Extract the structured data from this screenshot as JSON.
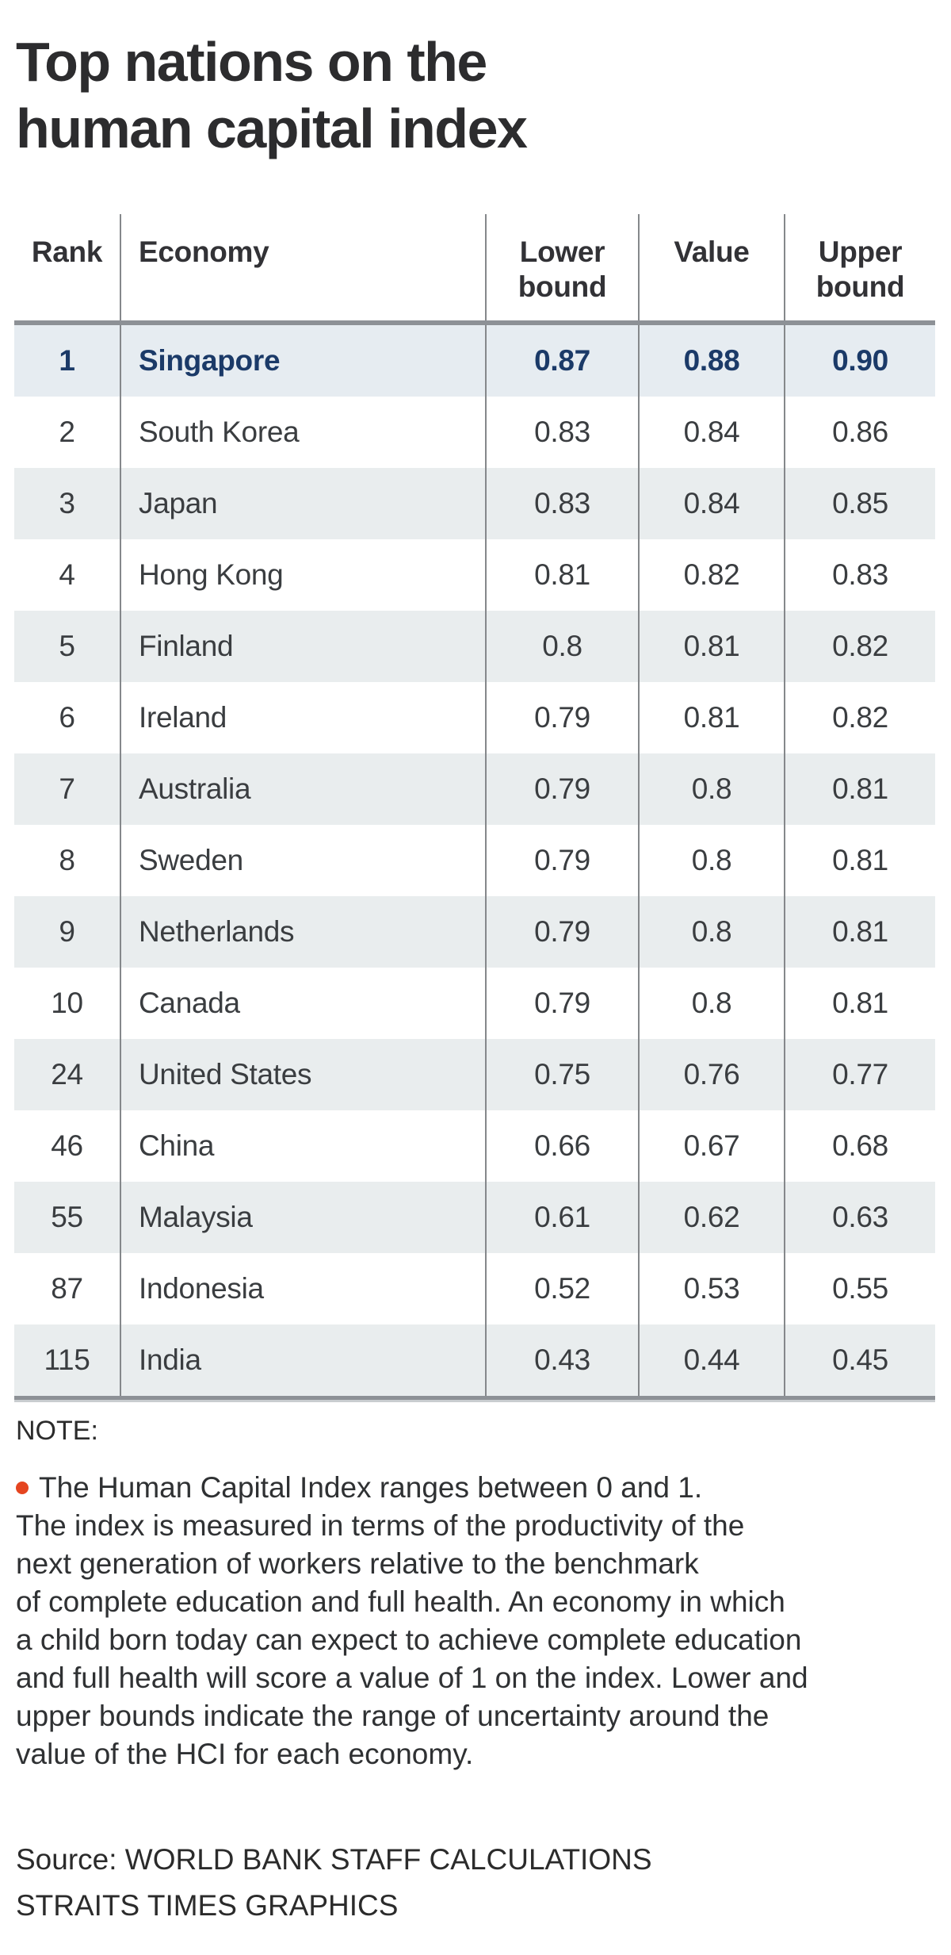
{
  "title": {
    "lines": [
      "Top nations on the",
      "human capital index"
    ]
  },
  "chart_data": {
    "type": "table",
    "title": "Top nations on the human capital index",
    "columns": [
      {
        "label": "Rank"
      },
      {
        "label": "Economy"
      },
      {
        "label": "Lower bound"
      },
      {
        "label": "Value"
      },
      {
        "label": "Upper bound"
      }
    ],
    "rows": [
      {
        "rank": "1",
        "economy": "Singapore",
        "lower": "0.87",
        "value": "0.88",
        "upper": "0.90",
        "highlight": true
      },
      {
        "rank": "2",
        "economy": "South Korea",
        "lower": "0.83",
        "value": "0.84",
        "upper": "0.86"
      },
      {
        "rank": "3",
        "economy": "Japan",
        "lower": "0.83",
        "value": "0.84",
        "upper": "0.85"
      },
      {
        "rank": "4",
        "economy": "Hong Kong",
        "lower": "0.81",
        "value": "0.82",
        "upper": "0.83"
      },
      {
        "rank": "5",
        "economy": "Finland",
        "lower": "0.8",
        "value": "0.81",
        "upper": "0.82"
      },
      {
        "rank": "6",
        "economy": "Ireland",
        "lower": "0.79",
        "value": "0.81",
        "upper": "0.82"
      },
      {
        "rank": "7",
        "economy": "Australia",
        "lower": "0.79",
        "value": "0.8",
        "upper": "0.81"
      },
      {
        "rank": "8",
        "economy": "Sweden",
        "lower": "0.79",
        "value": "0.8",
        "upper": "0.81"
      },
      {
        "rank": "9",
        "economy": "Netherlands",
        "lower": "0.79",
        "value": "0.8",
        "upper": "0.81"
      },
      {
        "rank": "10",
        "economy": "Canada",
        "lower": "0.79",
        "value": "0.8",
        "upper": "0.81"
      },
      {
        "rank": "24",
        "economy": "United States",
        "lower": "0.75",
        "value": "0.76",
        "upper": "0.77"
      },
      {
        "rank": "46",
        "economy": "China",
        "lower": "0.66",
        "value": "0.67",
        "upper": "0.68"
      },
      {
        "rank": "55",
        "economy": "Malaysia",
        "lower": "0.61",
        "value": "0.62",
        "upper": "0.63"
      },
      {
        "rank": "87",
        "economy": "Indonesia",
        "lower": "0.52",
        "value": "0.53",
        "upper": "0.55"
      },
      {
        "rank": "115",
        "economy": "India",
        "lower": "0.43",
        "value": "0.44",
        "upper": "0.45"
      }
    ]
  },
  "note": {
    "label": "NOTE:",
    "bullet_line": "The Human Capital Index ranges between 0 and 1.",
    "body_lines": [
      "The index is measured in terms of the productivity of the",
      "next generation of workers relative to the benchmark",
      "of complete education and full health. An economy in which",
      "a child born today can expect to achieve complete education",
      "and full health will score a value of 1 on the index. Lower and",
      "upper bounds indicate the range of uncertainty around the",
      "value of the HCI for each economy."
    ]
  },
  "source": {
    "lines": [
      "Source: WORLD BANK STAFF CALCULATIONS",
      "STRAITS TIMES GRAPHICS"
    ]
  },
  "colors": {
    "title_text": "#2c2c2e",
    "body_text": "#3a3d40",
    "highlight_bg": "#e6ecf1",
    "highlight_text": "#1b3a68",
    "stripe_bg": "#e9edee",
    "rule_gray": "#8d9196",
    "divider_gray": "#85888b",
    "shadow_gray": "#c9cdd0",
    "bullet_orange": "#e54520"
  }
}
